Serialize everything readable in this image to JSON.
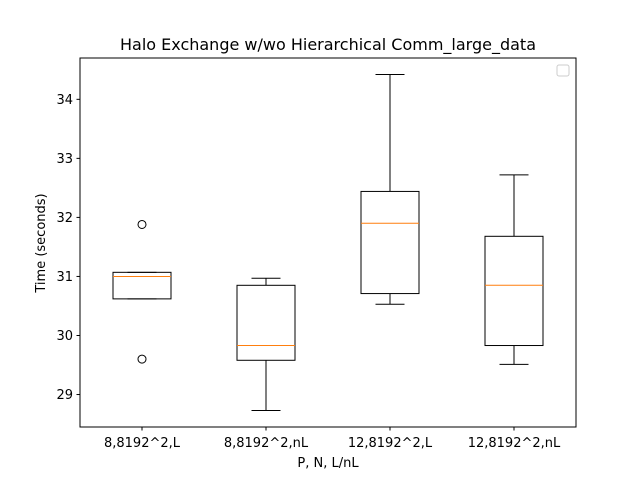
{
  "chart_data": {
    "type": "box",
    "title": "Halo Exchange w/wo Hierarchical Comm_large_data",
    "xlabel": "P, N, L/nL",
    "ylabel": "Time (seconds)",
    "ylim": [
      28.45,
      34.7
    ],
    "yticks": [
      29,
      30,
      31,
      32,
      33,
      34
    ],
    "grid": false,
    "legend": {
      "placement": "top-right",
      "entries": []
    },
    "categories": [
      "8,8192^2,L",
      "8,8192^2,nL",
      "12,8192^2,L",
      "12,8192^2,nL"
    ],
    "boxes": [
      {
        "whisker_low": 30.62,
        "q1": 30.62,
        "median": 31.0,
        "q3": 31.07,
        "whisker_high": 31.07,
        "outliers": [
          31.88,
          29.6
        ]
      },
      {
        "whisker_low": 28.73,
        "q1": 29.58,
        "median": 29.83,
        "q3": 30.85,
        "whisker_high": 30.97,
        "outliers": []
      },
      {
        "whisker_low": 30.53,
        "q1": 30.71,
        "median": 31.9,
        "q3": 32.44,
        "whisker_high": 34.42,
        "outliers": []
      },
      {
        "whisker_low": 29.51,
        "q1": 29.83,
        "median": 30.85,
        "q3": 31.68,
        "whisker_high": 32.72,
        "outliers": []
      }
    ],
    "colors": {
      "box": "#000000",
      "median": "#ff7f0e",
      "outlier": "#000000"
    }
  }
}
